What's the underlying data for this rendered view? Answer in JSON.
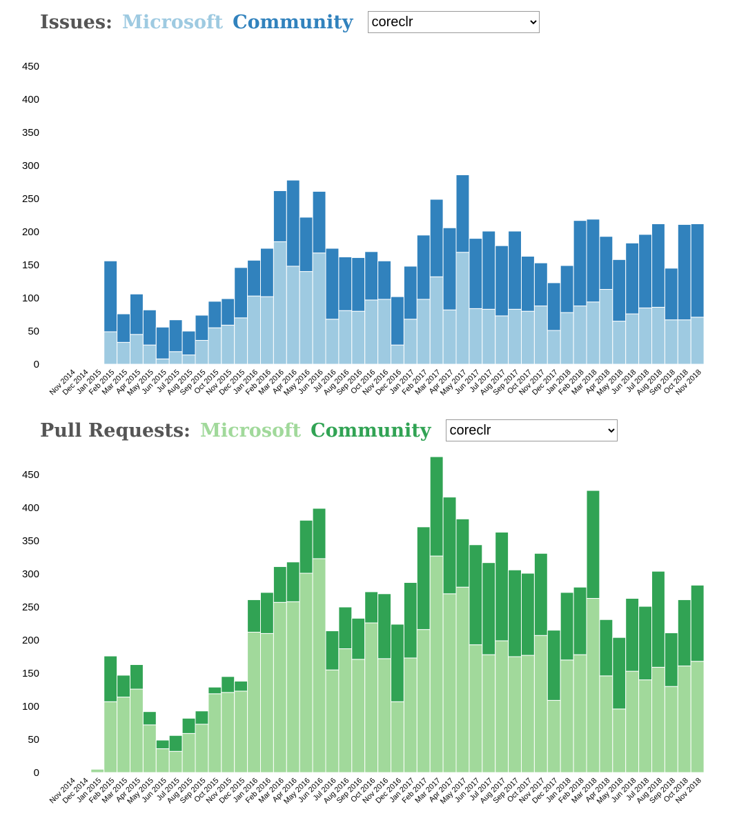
{
  "chart_data": [
    {
      "type": "bar",
      "stacked": true,
      "title": "Issues:",
      "selector": "coreclr",
      "categories": [
        "Nov 2014",
        "Dec 2014",
        "Jan 2015",
        "Feb 2015",
        "Mar 2015",
        "Apr 2015",
        "May 2015",
        "Jun 2015",
        "Jul 2015",
        "Aug 2015",
        "Sep 2015",
        "Oct 2015",
        "Nov 2015",
        "Dec 2015",
        "Jan 2016",
        "Feb 2016",
        "Mar 2016",
        "Apr 2016",
        "May 2016",
        "Jun 2016",
        "Jul 2016",
        "Aug 2016",
        "Sep 2016",
        "Oct 2016",
        "Nov 2016",
        "Dec 2016",
        "Jan 2017",
        "Feb 2017",
        "Mar 2017",
        "Apr 2017",
        "May 2017",
        "Jun 2017",
        "Jul 2017",
        "Aug 2017",
        "Sep 2017",
        "Oct 2017",
        "Nov 2017",
        "Dec 2017",
        "Jan 2018",
        "Feb 2018",
        "Mar 2018",
        "Apr 2018",
        "May 2018",
        "Jun 2018",
        "Jul 2018",
        "Aug 2018",
        "Sep 2018",
        "Oct 2018",
        "Nov 2018"
      ],
      "series": [
        {
          "name": "Microsoft",
          "color": "#9ecae1",
          "values": [
            null,
            null,
            null,
            49,
            33,
            45,
            29,
            8,
            19,
            14,
            36,
            55,
            59,
            70,
            103,
            102,
            185,
            148,
            140,
            168,
            68,
            81,
            80,
            97,
            98,
            29,
            68,
            98,
            132,
            82,
            169,
            84,
            83,
            73,
            83,
            80,
            88,
            51,
            78,
            88,
            94,
            113,
            65,
            76,
            85,
            86,
            67,
            67,
            71
          ]
        },
        {
          "name": "Community",
          "color": "#3182bd",
          "values": [
            null,
            null,
            null,
            107,
            43,
            61,
            53,
            48,
            48,
            36,
            38,
            40,
            40,
            76,
            54,
            73,
            77,
            130,
            82,
            93,
            107,
            81,
            81,
            73,
            58,
            73,
            80,
            97,
            117,
            124,
            117,
            106,
            118,
            106,
            118,
            83,
            65,
            72,
            71,
            129,
            125,
            80,
            93,
            107,
            111,
            126,
            78,
            144,
            141
          ]
        }
      ],
      "ylim": [
        0,
        450
      ],
      "yticks": [
        0,
        50,
        100,
        150,
        200,
        250,
        300,
        350,
        400,
        450
      ],
      "grid": false
    },
    {
      "type": "bar",
      "stacked": true,
      "title": "Pull Requests:",
      "selector": "coreclr",
      "categories": [
        "Nov 2014",
        "Dec 2014",
        "Jan 2015",
        "Feb 2015",
        "Mar 2015",
        "Apr 2015",
        "May 2015",
        "Jun 2015",
        "Jul 2015",
        "Aug 2015",
        "Sep 2015",
        "Oct 2015",
        "Nov 2015",
        "Dec 2015",
        "Jan 2016",
        "Feb 2016",
        "Mar 2016",
        "Apr 2016",
        "May 2016",
        "Jun 2016",
        "Jul 2016",
        "Aug 2016",
        "Sep 2016",
        "Oct 2016",
        "Nov 2016",
        "Dec 2016",
        "Jan 2017",
        "Feb 2017",
        "Mar 2017",
        "Apr 2017",
        "May 2017",
        "Jun 2017",
        "Jul 2017",
        "Aug 2017",
        "Sep 2017",
        "Oct 2017",
        "Nov 2017",
        "Dec 2017",
        "Jan 2018",
        "Feb 2018",
        "Mar 2018",
        "Apr 2018",
        "May 2018",
        "Jun 2018",
        "Jul 2018",
        "Aug 2018",
        "Sep 2018",
        "Oct 2018",
        "Nov 2018"
      ],
      "series": [
        {
          "name": "Microsoft",
          "color": "#a1d99b",
          "values": [
            null,
            null,
            5,
            107,
            114,
            126,
            72,
            36,
            32,
            59,
            73,
            119,
            121,
            123,
            212,
            210,
            257,
            258,
            301,
            323,
            155,
            187,
            171,
            226,
            172,
            107,
            173,
            216,
            327,
            270,
            280,
            193,
            178,
            199,
            175,
            177,
            207,
            109,
            170,
            178,
            263,
            146,
            96,
            153,
            140,
            159,
            130,
            161,
            168
          ]
        },
        {
          "name": "Community",
          "color": "#31a354",
          "values": [
            null,
            null,
            0,
            69,
            33,
            37,
            20,
            13,
            24,
            23,
            20,
            10,
            24,
            15,
            49,
            62,
            54,
            60,
            80,
            76,
            59,
            63,
            62,
            47,
            98,
            117,
            114,
            155,
            150,
            146,
            103,
            151,
            139,
            164,
            131,
            124,
            124,
            106,
            102,
            102,
            163,
            85,
            108,
            110,
            111,
            145,
            81,
            100,
            115
          ]
        }
      ],
      "ylim": [
        0,
        480
      ],
      "yticks": [
        0,
        50,
        100,
        150,
        200,
        250,
        300,
        350,
        400,
        450
      ],
      "grid": false
    }
  ]
}
